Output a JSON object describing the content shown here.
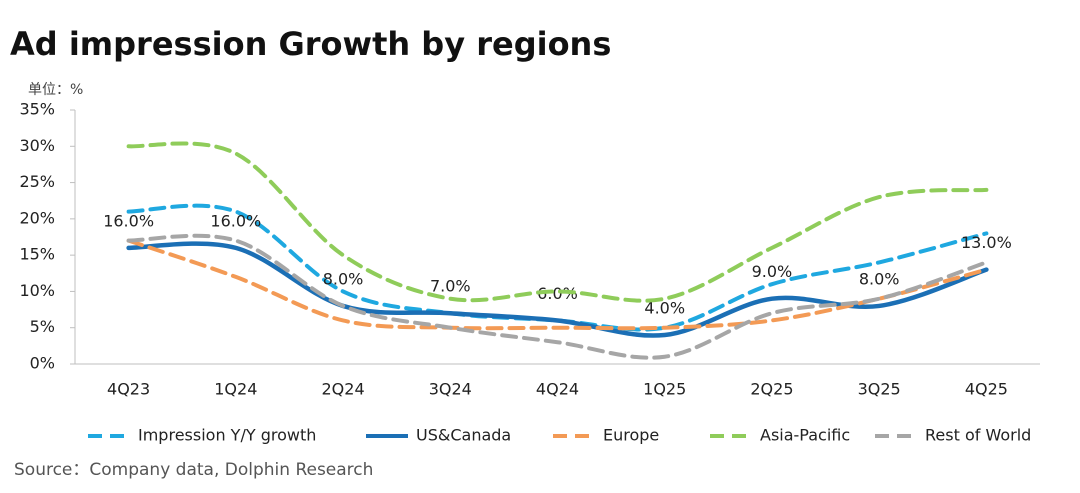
{
  "chart_data": {
    "type": "line",
    "title": "Ad impression Growth by regions",
    "unit_label": "单位：%",
    "source": "Source：Company data, Dolphin Research",
    "categories": [
      "4Q23",
      "1Q24",
      "2Q24",
      "3Q24",
      "4Q24",
      "1Q25",
      "2Q25",
      "3Q25",
      "4Q25"
    ],
    "series": [
      {
        "name": "Impression Y/Y growth",
        "color": "#1fa8e0",
        "dashed": true,
        "values": [
          21,
          21,
          10,
          7,
          6,
          5,
          11,
          14,
          18
        ]
      },
      {
        "name": "US&Canada",
        "color": "#1b6fb5",
        "dashed": false,
        "values": [
          16,
          16,
          8,
          7,
          6,
          4,
          9,
          8,
          13
        ],
        "value_labels": [
          "16.0%",
          "16.0%",
          "8.0%",
          "7.0%",
          "6.0%",
          "4.0%",
          "9.0%",
          "8.0%",
          "13.0%"
        ]
      },
      {
        "name": "Europe",
        "color": "#f39a55",
        "dashed": true,
        "values": [
          17,
          12,
          6,
          5,
          5,
          5,
          6,
          9,
          13
        ]
      },
      {
        "name": "Asia-Pacific",
        "color": "#8fcc5a",
        "dashed": true,
        "values": [
          30,
          29,
          15,
          9,
          10,
          9,
          16,
          23,
          24
        ]
      },
      {
        "name": "Rest of World",
        "color": "#a6a6a6",
        "dashed": true,
        "values": [
          17,
          17,
          8,
          5,
          3,
          1,
          7,
          9,
          14
        ]
      }
    ],
    "ylim": [
      0,
      35
    ],
    "yticks": [
      {
        "value": 0,
        "label": "0%"
      },
      {
        "value": 5,
        "label": "5%"
      },
      {
        "value": 10,
        "label": "10%"
      },
      {
        "value": 15,
        "label": "15%"
      },
      {
        "value": 20,
        "label": "20%"
      },
      {
        "value": 25,
        "label": "25%"
      },
      {
        "value": 30,
        "label": "30%"
      },
      {
        "value": 35,
        "label": "35%"
      }
    ],
    "grid": false,
    "legend": "bottom"
  }
}
